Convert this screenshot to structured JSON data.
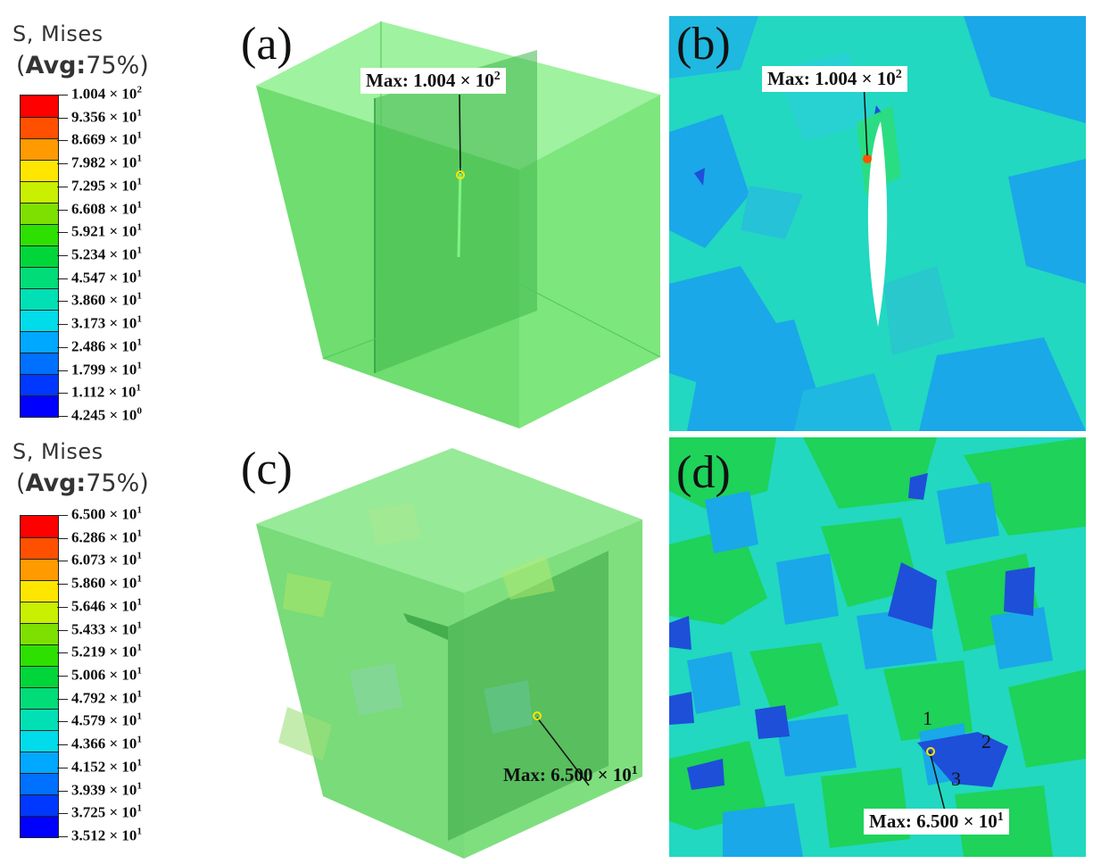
{
  "legends": [
    {
      "title": "S, Mises",
      "avg_prefix": "(",
      "avg_bold": "Avg:",
      "avg_value": "75%)",
      "colors": [
        "#ff0000",
        "#ff5000",
        "#ff9a00",
        "#ffe600",
        "#c8f000",
        "#7ee000",
        "#2ee000",
        "#00d63a",
        "#00dc78",
        "#00e0b4",
        "#00dcea",
        "#00a8ff",
        "#0070ff",
        "#0038ff",
        "#0000ff"
      ],
      "labels": [
        {
          "m": "1.004",
          "e": "2"
        },
        {
          "m": "9.356",
          "e": "1"
        },
        {
          "m": "8.669",
          "e": "1"
        },
        {
          "m": "7.982",
          "e": "1"
        },
        {
          "m": "7.295",
          "e": "1"
        },
        {
          "m": "6.608",
          "e": "1"
        },
        {
          "m": "5.921",
          "e": "1"
        },
        {
          "m": "5.234",
          "e": "1"
        },
        {
          "m": "4.547",
          "e": "1"
        },
        {
          "m": "3.860",
          "e": "1"
        },
        {
          "m": "3.173",
          "e": "1"
        },
        {
          "m": "2.486",
          "e": "1"
        },
        {
          "m": "1.799",
          "e": "1"
        },
        {
          "m": "1.112",
          "e": "1"
        },
        {
          "m": "4.245",
          "e": "0"
        }
      ]
    },
    {
      "title": "S, Mises",
      "avg_prefix": "(",
      "avg_bold": "Avg:",
      "avg_value": "75%)",
      "colors": [
        "#ff0000",
        "#ff5000",
        "#ff9a00",
        "#ffe600",
        "#c8f000",
        "#7ee000",
        "#2ee000",
        "#00d63a",
        "#00dc78",
        "#00e0b4",
        "#00dcea",
        "#00a8ff",
        "#0070ff",
        "#0038ff",
        "#0000ff"
      ],
      "labels": [
        {
          "m": "6.500",
          "e": "1"
        },
        {
          "m": "6.286",
          "e": "1"
        },
        {
          "m": "6.073",
          "e": "1"
        },
        {
          "m": "5.860",
          "e": "1"
        },
        {
          "m": "5.646",
          "e": "1"
        },
        {
          "m": "5.433",
          "e": "1"
        },
        {
          "m": "5.219",
          "e": "1"
        },
        {
          "m": "5.006",
          "e": "1"
        },
        {
          "m": "4.792",
          "e": "1"
        },
        {
          "m": "4.579",
          "e": "1"
        },
        {
          "m": "4.366",
          "e": "1"
        },
        {
          "m": "4.152",
          "e": "1"
        },
        {
          "m": "3.939",
          "e": "1"
        },
        {
          "m": "3.725",
          "e": "1"
        },
        {
          "m": "3.512",
          "e": "1"
        }
      ]
    }
  ],
  "times": "×",
  "panels": {
    "a": {
      "label": "(a)",
      "max_mantissa": "Max: 1.004",
      "max_exp": "2"
    },
    "b": {
      "label": "(b)",
      "max_mantissa": "Max: 1.004",
      "max_exp": "2"
    },
    "c": {
      "label": "(c)",
      "max_mantissa": "Max: 6.500",
      "max_exp": "1"
    },
    "d": {
      "label": "(d)",
      "max_mantissa": "Max: 6.500",
      "max_exp": "1",
      "markers": [
        "1",
        "2",
        "3"
      ]
    }
  },
  "colors": {
    "cube_green": "#66e066",
    "grain_cyan": "#22d8c0",
    "grain_green": "#1ed25a",
    "grain_blue": "#1aa8e8",
    "grain_dark_blue": "#1e4fd8"
  }
}
